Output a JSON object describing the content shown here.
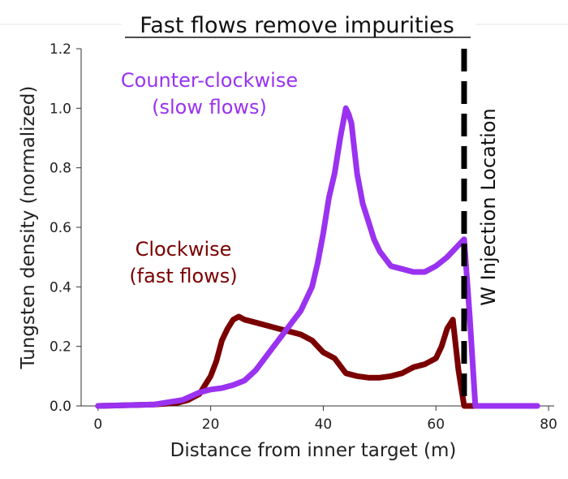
{
  "chart_data": {
    "type": "line",
    "title": "Fast flows remove impurities",
    "xlabel": "Distance from inner target (m)",
    "ylabel": "Tungsten density (normalized)",
    "xlim": [
      -3,
      81
    ],
    "ylim": [
      0,
      1.2
    ],
    "xticks": [
      "0",
      "20",
      "40",
      "60",
      "80"
    ],
    "yticks": [
      "0.0",
      "0.2",
      "0.4",
      "0.6",
      "0.8",
      "1.0",
      "1.2"
    ],
    "grid": false,
    "series": [
      {
        "name": "Counter-clockwise (slow flows)",
        "color": "#9a32f0",
        "x": [
          0,
          10,
          15,
          18,
          20,
          22,
          24,
          26,
          28,
          30,
          32,
          34,
          36,
          38,
          39,
          40,
          41,
          42,
          43,
          44,
          44.5,
          45,
          46,
          47,
          48,
          49,
          50,
          52,
          54,
          56,
          58,
          60,
          62,
          64,
          65,
          66,
          67,
          70,
          75,
          78
        ],
        "values": [
          0.0,
          0.005,
          0.02,
          0.045,
          0.055,
          0.06,
          0.07,
          0.085,
          0.12,
          0.17,
          0.22,
          0.27,
          0.32,
          0.4,
          0.48,
          0.58,
          0.7,
          0.78,
          0.9,
          1.0,
          0.98,
          0.95,
          0.78,
          0.68,
          0.62,
          0.56,
          0.52,
          0.47,
          0.46,
          0.45,
          0.45,
          0.47,
          0.5,
          0.54,
          0.56,
          0.3,
          0.0,
          0.0,
          0.0,
          0.0
        ]
      },
      {
        "name": "Clockwise (fast flows)",
        "color": "#7a0000",
        "x": [
          0,
          10,
          14,
          16,
          18,
          20,
          21,
          22,
          23,
          24,
          25,
          26,
          28,
          30,
          32,
          34,
          36,
          38,
          40,
          42,
          44,
          46,
          48,
          50,
          52,
          54,
          56,
          58,
          60,
          61,
          62,
          63,
          64,
          65,
          66,
          70,
          76
        ],
        "values": [
          0.0,
          0.005,
          0.01,
          0.02,
          0.04,
          0.1,
          0.15,
          0.22,
          0.26,
          0.29,
          0.3,
          0.29,
          0.28,
          0.27,
          0.26,
          0.25,
          0.24,
          0.22,
          0.18,
          0.16,
          0.11,
          0.1,
          0.095,
          0.095,
          0.1,
          0.11,
          0.13,
          0.14,
          0.16,
          0.2,
          0.26,
          0.29,
          0.12,
          0.0,
          0.0,
          0.0,
          0.0
        ]
      }
    ],
    "annotations": {
      "ccw_line1": "Counter-clockwise",
      "ccw_line2": "(slow flows)",
      "cw_line1": "Clockwise",
      "cw_line2": "(fast flows)",
      "injection_label": "W Injection Location",
      "injection_x": 65
    }
  }
}
